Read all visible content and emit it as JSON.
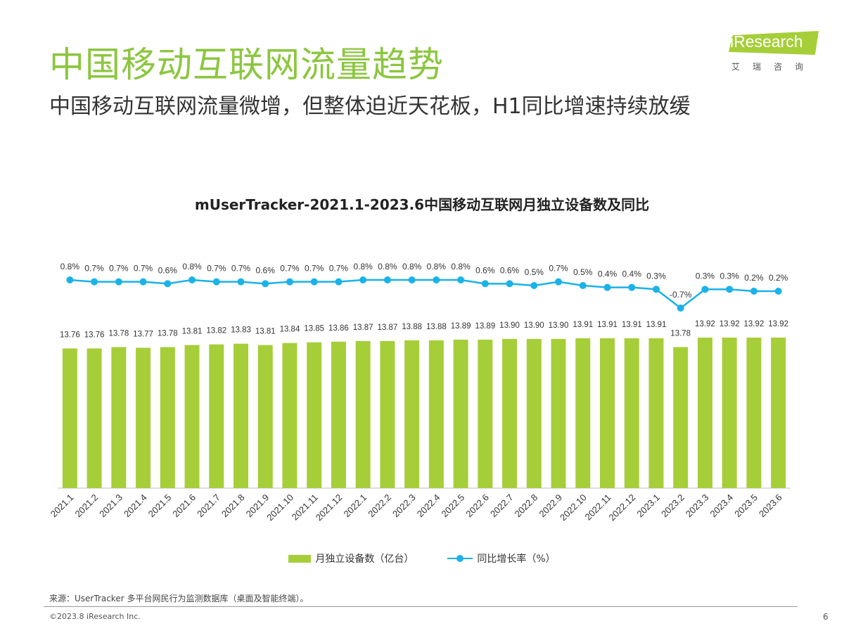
{
  "page": {
    "title": "中国移动互联网流量趋势",
    "subtitle": "中国移动互联网流量微增，但整体迫近天花板，H1同比增速持续放缓"
  },
  "logo": {
    "text": "iResearch",
    "cn": "艾瑞咨询",
    "color": "#a6ce39"
  },
  "footer": {
    "source": "来源：UserTracker 多平台网民行为监测数据库（桌面及智能终端）。",
    "copyright": "©2023.8 iResearch Inc.",
    "page_number": "6"
  },
  "chart_data": {
    "type": "bar",
    "title": "mUserTracker-2021.1-2023.6中国移动互联网月独立设备数及同比",
    "categories": [
      "2021.1",
      "2021.2",
      "2021.3",
      "2021.4",
      "2021.5",
      "2021.6",
      "2021.7",
      "2021.8",
      "2021.9",
      "2021.10",
      "2021.11",
      "2021.12",
      "2022.1",
      "2022.2",
      "2022.3",
      "2022.4",
      "2022.5",
      "2022.6",
      "2022.7",
      "2022.8",
      "2022.9",
      "2022.10",
      "2022.11",
      "2022.12",
      "2023.1",
      "2023.2",
      "2023.3",
      "2023.4",
      "2023.5",
      "2023.6"
    ],
    "series": [
      {
        "name": "月独立设备数（亿台）",
        "type": "bar",
        "color": "#a6ce39",
        "values": [
          13.76,
          13.76,
          13.78,
          13.77,
          13.78,
          13.81,
          13.82,
          13.83,
          13.81,
          13.84,
          13.85,
          13.86,
          13.87,
          13.87,
          13.88,
          13.88,
          13.89,
          13.89,
          13.9,
          13.9,
          13.9,
          13.91,
          13.91,
          13.91,
          13.91,
          13.78,
          13.92,
          13.92,
          13.92,
          13.92
        ],
        "labels": [
          "13.76",
          "13.76",
          "13.78",
          "13.77",
          "13.78",
          "13.81",
          "13.82",
          "13.83",
          "13.81",
          "13.84",
          "13.85",
          "13.86",
          "13.87",
          "13.87",
          "13.88",
          "13.88",
          "13.89",
          "13.89",
          "13.90",
          "13.90",
          "13.90",
          "13.91",
          "13.91",
          "13.91",
          "13.91",
          "13.78",
          "13.92",
          "13.92",
          "13.92",
          "13.92"
        ]
      },
      {
        "name": "同比增长率（%）",
        "type": "line",
        "color": "#1ab2e8",
        "values": [
          0.8,
          0.7,
          0.7,
          0.7,
          0.6,
          0.8,
          0.7,
          0.7,
          0.6,
          0.7,
          0.7,
          0.7,
          0.8,
          0.8,
          0.8,
          0.8,
          0.8,
          0.6,
          0.6,
          0.5,
          0.7,
          0.5,
          0.4,
          0.4,
          0.3,
          -0.7,
          0.3,
          0.3,
          0.2,
          0.2
        ],
        "labels": [
          "0.8%",
          "0.7%",
          "0.7%",
          "0.7%",
          "0.6%",
          "0.8%",
          "0.7%",
          "0.7%",
          "0.6%",
          "0.7%",
          "0.7%",
          "0.7%",
          "0.8%",
          "0.8%",
          "0.8%",
          "0.8%",
          "0.8%",
          "0.6%",
          "0.6%",
          "0.5%",
          "0.7%",
          "0.5%",
          "0.4%",
          "0.4%",
          "0.3%",
          "-0.7%",
          "0.3%",
          "0.3%",
          "0.2%",
          "0.2%"
        ]
      }
    ],
    "legend": "bottom",
    "grid": false
  }
}
